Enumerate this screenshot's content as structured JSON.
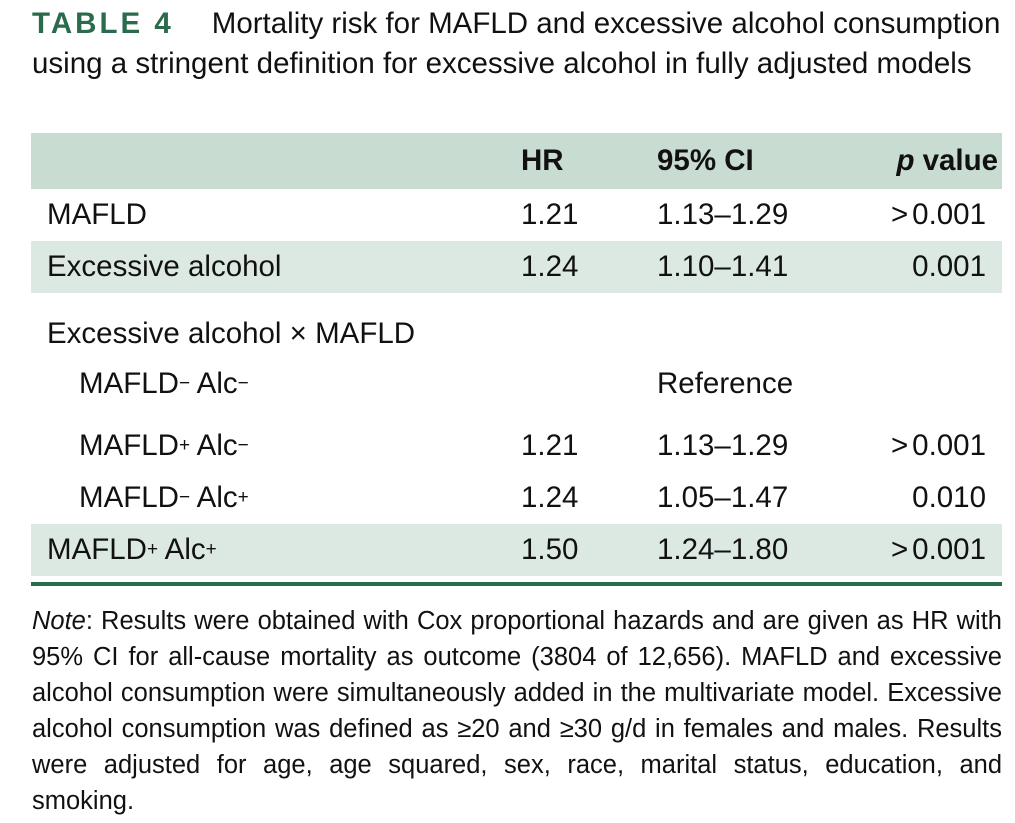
{
  "caption": {
    "label": "TABLE 4",
    "title": "Mortality risk for MAFLD and excessive alcohol consumption using a stringent definition for excessive alcohol in fully adjusted models"
  },
  "table": {
    "headers": {
      "name": "",
      "hr": "HR",
      "ci": "95% CI",
      "p_italic": "p",
      "p_rest": "value"
    },
    "rows": [
      {
        "name": "MAFLD",
        "hr": "1.21",
        "ci": "1.13–1.29",
        "p": "0.001",
        "gt": ">"
      },
      {
        "name": "Excessive alcohol",
        "hr": "1.24",
        "ci": "1.10–1.41",
        "p": "0.001",
        "gt": ""
      },
      {
        "name": "Excessive alcohol × MAFLD",
        "hr": "",
        "ci": "",
        "p": "",
        "gt": ""
      },
      {
        "name": "MAFLD",
        "name_sup": "−",
        "name2": " Alc",
        "name2_sup": "−",
        "hr": "",
        "ci": "Reference",
        "p": "",
        "gt": ""
      },
      {
        "name": "MAFLD",
        "name_sup": "+",
        "name2": " Alc",
        "name2_sup": "−",
        "hr": "1.21",
        "ci": "1.13–1.29",
        "p": "0.001",
        "gt": ">"
      },
      {
        "name": "MAFLD",
        "name_sup": "−",
        "name2": " Alc",
        "name2_sup": "+",
        "hr": "1.24",
        "ci": "1.05–1.47",
        "p": "0.010",
        "gt": ""
      },
      {
        "name": "MAFLD",
        "name_sup": "+",
        "name2": " Alc",
        "name2_sup": "+",
        "hr": "1.50",
        "ci": "1.24–1.80",
        "p": "0.001",
        "gt": ">"
      }
    ]
  },
  "note": {
    "label": "Note",
    "text": ": Results were obtained with Cox proportional hazards and are given as HR with 95% CI for all-cause mortality as outcome (3804 of 12,656). MAFLD and excessive alcohol consumption were simultaneously added in the multivariate model. Excessive alcohol consumption was defined as ≥20 and ≥30 g/d in females and males. Results were adjusted for age, age squared, sex, race, marital status, education, and smoking."
  }
}
